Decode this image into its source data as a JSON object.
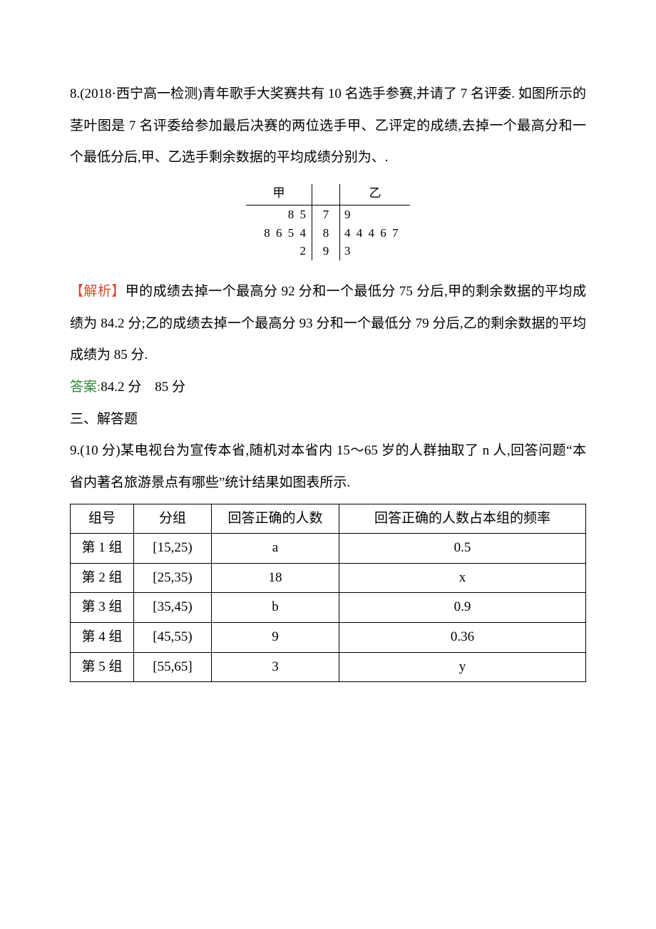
{
  "q8": {
    "text": "8.(2018·西宁高一检测)青年歌手大奖赛共有 10 名选手参赛,并请了 7 名评委. 如图所示的茎叶图是 7 名评委给参加最后决赛的两位选手甲、乙评定的成绩,去掉一个最高分和一个最低分后,甲、乙选手剩余数据的平均成绩分别为、.",
    "stemleaf": {
      "header_left": "甲",
      "header_right": "乙",
      "rows": [
        {
          "left": "8 5",
          "stem": "7",
          "right": "9"
        },
        {
          "left": "8 6 5 4",
          "stem": "8",
          "right": "4 4 4 6 7"
        },
        {
          "left": "2",
          "stem": "9",
          "right": "3"
        }
      ]
    },
    "analysis_label": "【解析】",
    "analysis_text": "甲的成绩去掉一个最高分 92 分和一个最低分 75 分后,甲的剩余数据的平均成绩为 84.2 分;乙的成绩去掉一个最高分 93 分和一个最低分 79 分后,乙的剩余数据的平均成绩为 85 分.",
    "answer_label": "答案:",
    "answer_text": "84.2 分　85 分"
  },
  "section3": "三、解答题",
  "q9": {
    "text": "9.(10 分)某电视台为宣传本省,随机对本省内 15～65 岁的人群抽取了 n 人,回答问题“本省内著名旅游景点有哪些”统计结果如图表所示.",
    "table": {
      "headers": [
        "组号",
        "分组",
        "回答正确的人数",
        "回答正确的人数占本组的频率"
      ],
      "rows": [
        [
          "第 1 组",
          "[15,25)",
          "a",
          "0.5"
        ],
        [
          "第 2 组",
          "[25,35)",
          "18",
          "x"
        ],
        [
          "第 3 组",
          "[35,45)",
          "b",
          "0.9"
        ],
        [
          "第 4 组",
          "[45,55)",
          "9",
          "0.36"
        ],
        [
          "第 5 组",
          "[55,65]",
          "3",
          "y"
        ]
      ]
    }
  }
}
